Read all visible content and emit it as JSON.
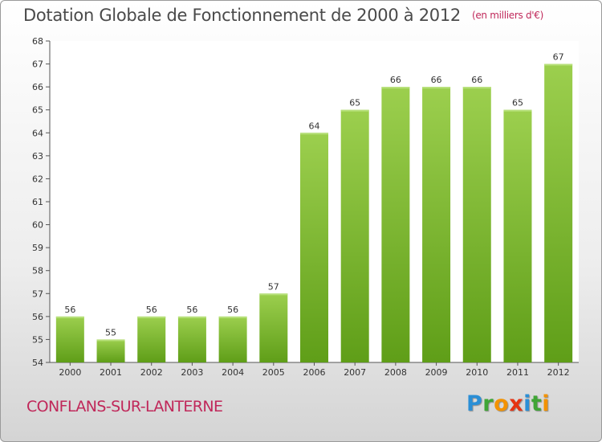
{
  "header": {
    "title": "Dotation Globale de Fonctionnement de 2000 à 2012",
    "unit": "(en milliers d'€)"
  },
  "footer": {
    "city": "CONFLANS-SUR-LANTERNE",
    "logo_letters": [
      {
        "ch": "P",
        "color": "#2b8fd6"
      },
      {
        "ch": "r",
        "color": "#3fa535"
      },
      {
        "ch": "o",
        "color": "#f39200"
      },
      {
        "ch": "x",
        "color": "#e63312"
      },
      {
        "ch": "i",
        "color": "#2b8fd6"
      },
      {
        "ch": "t",
        "color": "#3fa535"
      },
      {
        "ch": "i",
        "color": "#f39200"
      }
    ]
  },
  "chart_data": {
    "type": "bar",
    "categories": [
      "2000",
      "2001",
      "2002",
      "2003",
      "2004",
      "2005",
      "2006",
      "2007",
      "2008",
      "2009",
      "2010",
      "2011",
      "2012"
    ],
    "values": [
      56,
      55,
      56,
      56,
      56,
      57,
      64,
      65,
      66,
      66,
      66,
      65,
      67
    ],
    "ylim": [
      54,
      68
    ],
    "yticks": [
      54,
      55,
      56,
      57,
      58,
      59,
      60,
      61,
      62,
      63,
      64,
      65,
      66,
      67,
      68
    ],
    "grid": false,
    "bar_color_top": "#9ccf4e",
    "bar_color_bottom": "#5f9e18"
  }
}
